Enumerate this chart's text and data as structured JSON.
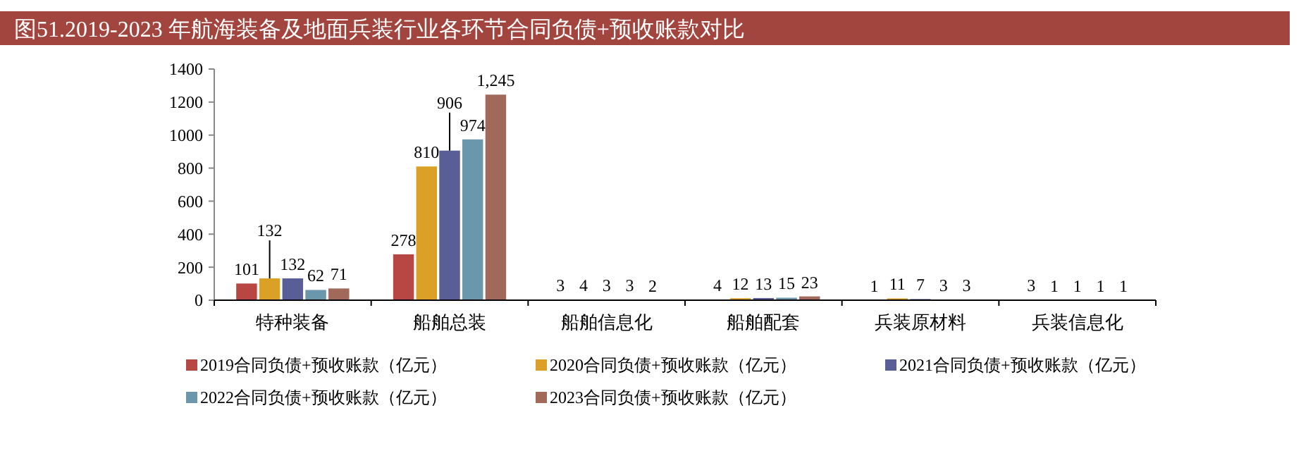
{
  "chart_data": {
    "type": "bar",
    "title": "图51.2019-2023 年航海装备及地面兵装行业各环节合同负债+预收账款对比",
    "categories": [
      "特种装备",
      "船舶总装",
      "船舶信息化",
      "船舶配套",
      "兵装原材料",
      "兵装信息化"
    ],
    "series": [
      {
        "name": "2019合同负债+预收账款（亿元）",
        "color": "#b84743",
        "values": [
          101,
          278,
          3,
          4,
          1,
          3
        ]
      },
      {
        "name": "2020合同负债+预收账款（亿元）",
        "color": "#dba126",
        "values": [
          132,
          810,
          4,
          12,
          11,
          1
        ]
      },
      {
        "name": "2021合同负债+预收账款（亿元）",
        "color": "#5a5e96",
        "values": [
          132,
          906,
          3,
          13,
          7,
          1
        ]
      },
      {
        "name": "2022合同负债+预收账款（亿元）",
        "color": "#6a97ab",
        "values": [
          62,
          974,
          3,
          15,
          3,
          1
        ]
      },
      {
        "name": "2023合同负债+预收账款（亿元）",
        "color": "#a0695a",
        "values": [
          71,
          1245,
          2,
          23,
          3,
          1
        ],
        "value_labels": [
          "71",
          "1,245",
          "2",
          "23",
          "3",
          "1"
        ]
      }
    ],
    "ylim": [
      0,
      1400
    ],
    "yticks": [
      0,
      200,
      400,
      600,
      800,
      1000,
      1200,
      1400
    ],
    "data_labels": true,
    "grid": false,
    "legend": "bottom"
  }
}
